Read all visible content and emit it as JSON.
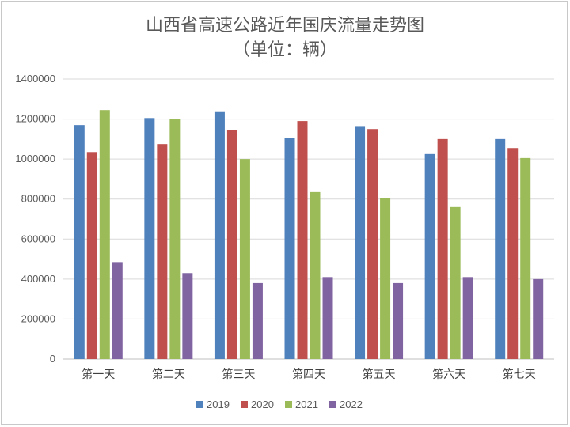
{
  "chart_data": {
    "type": "bar",
    "title": "山西省高速公路近年国庆流量走势图",
    "subtitle": "（单位：辆）",
    "xlabel": "",
    "ylabel": "",
    "categories": [
      "第一天",
      "第二天",
      "第三天",
      "第四天",
      "第五天",
      "第六天",
      "第七天"
    ],
    "series": [
      {
        "name": "2019",
        "color": "#4f81bd",
        "values": [
          1170000,
          1205000,
          1235000,
          1105000,
          1165000,
          1025000,
          1100000
        ]
      },
      {
        "name": "2020",
        "color": "#c0504d",
        "values": [
          1035000,
          1075000,
          1145000,
          1190000,
          1150000,
          1100000,
          1055000
        ]
      },
      {
        "name": "2021",
        "color": "#9bbb59",
        "values": [
          1245000,
          1200000,
          1000000,
          835000,
          805000,
          760000,
          1005000
        ]
      },
      {
        "name": "2022",
        "color": "#8064a2",
        "values": [
          485000,
          430000,
          380000,
          410000,
          380000,
          410000,
          400000
        ]
      }
    ],
    "ylim": [
      0,
      1400000
    ],
    "yticks": [
      0,
      200000,
      400000,
      600000,
      800000,
      1000000,
      1200000,
      1400000
    ],
    "grid": true,
    "legend_position": "bottom"
  }
}
